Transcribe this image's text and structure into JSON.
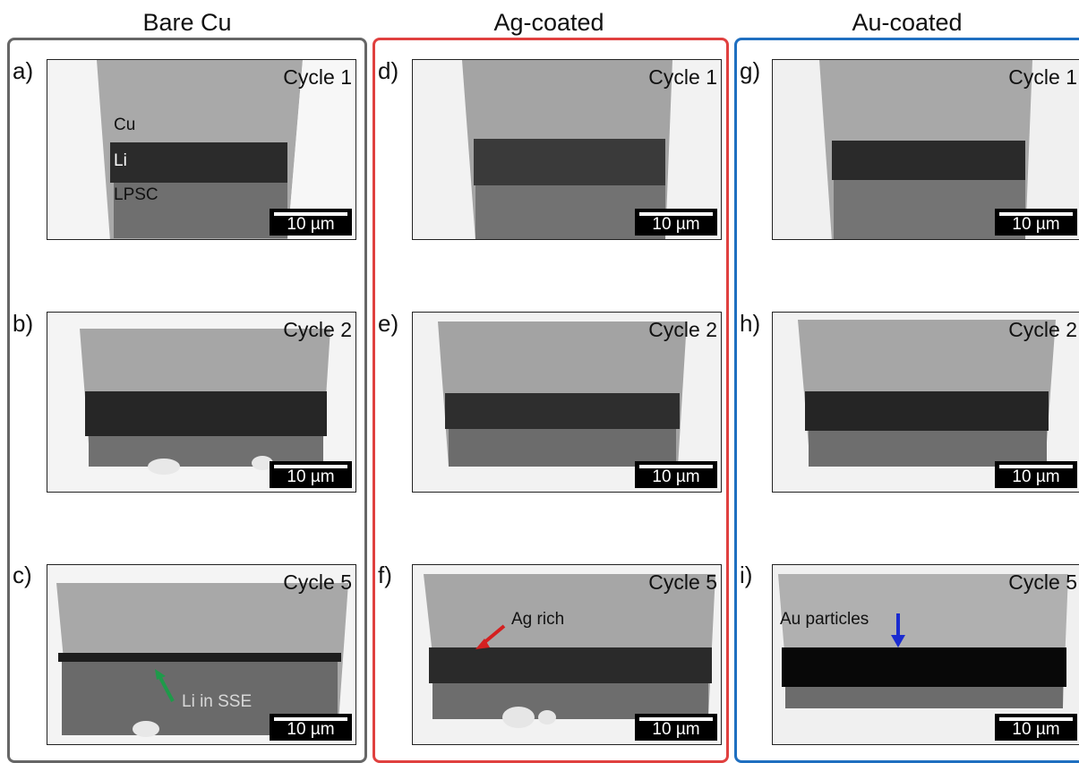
{
  "columns": [
    {
      "title": "Bare Cu",
      "frame_color": "#666666"
    },
    {
      "title": "Ag-coated",
      "frame_color": "#e0403f"
    },
    {
      "title": "Au-coated",
      "frame_color": "#1f6fc0"
    }
  ],
  "panels": {
    "a": {
      "letter": "a)",
      "cycle": "Cycle 1",
      "scale": "10 µm"
    },
    "b": {
      "letter": "b)",
      "cycle": "Cycle 2",
      "scale": "10 µm"
    },
    "c": {
      "letter": "c)",
      "cycle": "Cycle 5",
      "scale": "10 µm"
    },
    "d": {
      "letter": "d)",
      "cycle": "Cycle 1",
      "scale": "10 µm"
    },
    "e": {
      "letter": "e)",
      "cycle": "Cycle 2",
      "scale": "10 µm"
    },
    "f": {
      "letter": "f)",
      "cycle": "Cycle 5",
      "scale": "10 µm"
    },
    "g": {
      "letter": "g)",
      "cycle": "Cycle 1",
      "scale": "10 µm"
    },
    "h": {
      "letter": "h)",
      "cycle": "Cycle 2",
      "scale": "10 µm"
    },
    "i": {
      "letter": "i)",
      "cycle": "Cycle 5",
      "scale": "10 µm"
    }
  },
  "annotations": {
    "cu": "Cu",
    "li": "Li",
    "lpsc": "LPSC",
    "li_in_sse": "Li in SSE",
    "ag_rich": "Ag rich",
    "au_particles": "Au particles"
  },
  "arrow_colors": {
    "li_in_sse": "#1e9a4a",
    "ag_rich": "#d42020",
    "au_particles": "#1a2bd0"
  }
}
